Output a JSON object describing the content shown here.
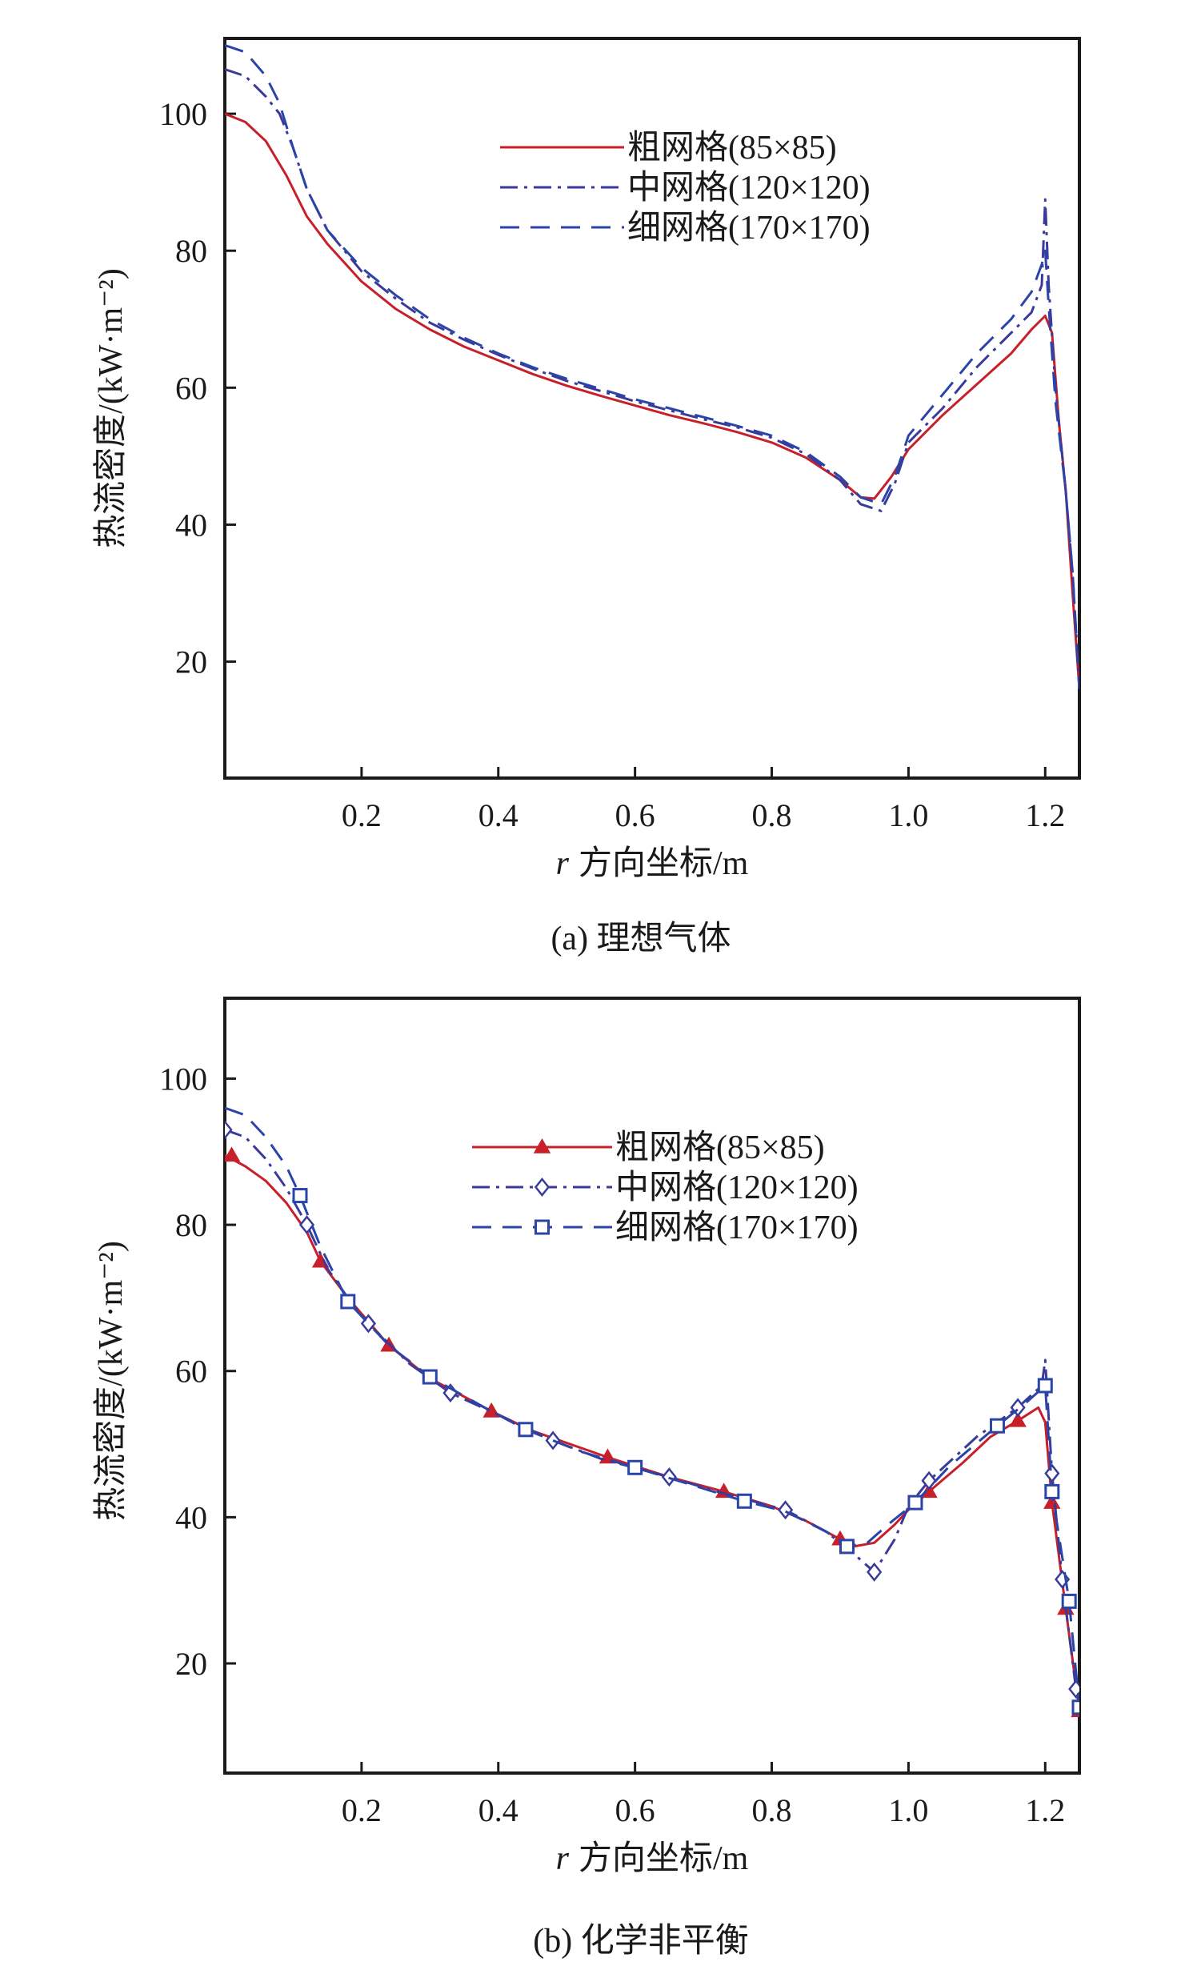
{
  "chart_data": [
    {
      "type": "line",
      "caption": "(a) 理想气体",
      "xlabel_var": "r",
      "xlabel": "方向坐标/m",
      "ylabel": "热流密度/(kW·m⁻²)",
      "xlim": [
        0.0,
        1.25
      ],
      "ylim": [
        3,
        111
      ],
      "xticks": [
        0.2,
        0.4,
        0.6,
        0.8,
        1.0,
        1.2
      ],
      "yticks": [
        20,
        40,
        60,
        80,
        100
      ],
      "legend_position": "top-right",
      "series": [
        {
          "name": "粗网格(85×85)",
          "color": "#c8202a",
          "dash": "solid",
          "marker": "none",
          "points": [
            [
              0.0,
              100
            ],
            [
              0.03,
              98.8
            ],
            [
              0.06,
              96
            ],
            [
              0.09,
              91
            ],
            [
              0.12,
              85
            ],
            [
              0.15,
              81
            ],
            [
              0.2,
              75.5
            ],
            [
              0.25,
              71.5
            ],
            [
              0.3,
              68.5
            ],
            [
              0.35,
              66
            ],
            [
              0.4,
              64
            ],
            [
              0.45,
              62
            ],
            [
              0.5,
              60.3
            ],
            [
              0.55,
              58.8
            ],
            [
              0.6,
              57.4
            ],
            [
              0.65,
              56
            ],
            [
              0.7,
              54.8
            ],
            [
              0.75,
              53.5
            ],
            [
              0.8,
              52
            ],
            [
              0.85,
              49.8
            ],
            [
              0.9,
              46.5
            ],
            [
              0.93,
              44
            ],
            [
              0.95,
              43.8
            ],
            [
              0.975,
              47
            ],
            [
              1.0,
              51
            ],
            [
              1.05,
              56
            ],
            [
              1.1,
              60.5
            ],
            [
              1.15,
              65
            ],
            [
              1.18,
              68.5
            ],
            [
              1.2,
              70.5
            ],
            [
              1.21,
              68
            ],
            [
              1.22,
              55
            ],
            [
              1.23,
              45
            ],
            [
              1.24,
              30
            ],
            [
              1.25,
              16
            ]
          ]
        },
        {
          "name": "中网格(120×120)",
          "color": "#3a3a9a",
          "dash": "dashdot",
          "marker": "none",
          "points": [
            [
              0.0,
              106.5
            ],
            [
              0.03,
              105.5
            ],
            [
              0.06,
              102.5
            ],
            [
              0.08,
              100
            ],
            [
              0.1,
              95
            ],
            [
              0.12,
              89
            ],
            [
              0.15,
              83
            ],
            [
              0.2,
              77
            ],
            [
              0.25,
              73
            ],
            [
              0.3,
              69.5
            ],
            [
              0.35,
              67
            ],
            [
              0.4,
              64.8
            ],
            [
              0.45,
              62.8
            ],
            [
              0.5,
              61
            ],
            [
              0.55,
              59.5
            ],
            [
              0.6,
              58
            ],
            [
              0.65,
              56.7
            ],
            [
              0.7,
              55.4
            ],
            [
              0.75,
              54.2
            ],
            [
              0.8,
              52.7
            ],
            [
              0.85,
              50.3
            ],
            [
              0.9,
              46.5
            ],
            [
              0.93,
              43
            ],
            [
              0.96,
              42
            ],
            [
              0.98,
              46
            ],
            [
              1.0,
              52
            ],
            [
              1.05,
              57
            ],
            [
              1.1,
              63
            ],
            [
              1.15,
              68
            ],
            [
              1.18,
              71
            ],
            [
              1.195,
              75
            ],
            [
              1.2,
              87.5
            ],
            [
              1.205,
              75
            ],
            [
              1.215,
              60
            ],
            [
              1.23,
              45
            ],
            [
              1.24,
              33
            ],
            [
              1.25,
              16
            ]
          ]
        },
        {
          "name": "细网格(170×170)",
          "color": "#2a44a8",
          "dash": "dashed",
          "marker": "none",
          "points": [
            [
              0.0,
              110
            ],
            [
              0.03,
              109
            ],
            [
              0.06,
              105.5
            ],
            [
              0.08,
              101.5
            ],
            [
              0.1,
              95
            ],
            [
              0.12,
              89
            ],
            [
              0.15,
              83
            ],
            [
              0.2,
              77.5
            ],
            [
              0.25,
              73.5
            ],
            [
              0.3,
              70
            ],
            [
              0.35,
              67.3
            ],
            [
              0.4,
              65
            ],
            [
              0.45,
              63
            ],
            [
              0.5,
              61.3
            ],
            [
              0.55,
              59.8
            ],
            [
              0.6,
              58.3
            ],
            [
              0.65,
              57
            ],
            [
              0.7,
              55.7
            ],
            [
              0.75,
              54.4
            ],
            [
              0.8,
              53
            ],
            [
              0.85,
              50.6
            ],
            [
              0.9,
              47
            ],
            [
              0.93,
              44
            ],
            [
              0.96,
              43
            ],
            [
              0.98,
              47
            ],
            [
              1.0,
              53
            ],
            [
              1.05,
              59
            ],
            [
              1.1,
              65
            ],
            [
              1.15,
              70
            ],
            [
              1.18,
              74
            ],
            [
              1.195,
              78
            ],
            [
              1.2,
              80
            ],
            [
              1.205,
              72
            ],
            [
              1.215,
              58
            ],
            [
              1.23,
              45
            ],
            [
              1.24,
              33
            ],
            [
              1.25,
              16
            ]
          ]
        }
      ]
    },
    {
      "type": "line",
      "caption": "(b) 化学非平衡",
      "xlabel_var": "r",
      "xlabel": "方向坐标/m",
      "ylabel": "热流密度/(kW·m⁻²)",
      "xlim": [
        0.0,
        1.25
      ],
      "ylim": [
        5,
        111
      ],
      "xticks": [
        0.2,
        0.4,
        0.6,
        0.8,
        1.0,
        1.2
      ],
      "yticks": [
        20,
        40,
        60,
        80,
        100
      ],
      "legend_position": "top-right",
      "series": [
        {
          "name": "粗网格(85×85)",
          "color": "#c8202a",
          "dash": "solid",
          "marker": "triangle",
          "points": [
            [
              0.0,
              89.5
            ],
            [
              0.03,
              88
            ],
            [
              0.06,
              86
            ],
            [
              0.09,
              83
            ],
            [
              0.12,
              79
            ],
            [
              0.14,
              75
            ],
            [
              0.18,
              70
            ],
            [
              0.24,
              63.5
            ],
            [
              0.3,
              59
            ],
            [
              0.39,
              54.5
            ],
            [
              0.45,
              51.8
            ],
            [
              0.56,
              48.2
            ],
            [
              0.65,
              45.5
            ],
            [
              0.73,
              43.5
            ],
            [
              0.8,
              41.5
            ],
            [
              0.85,
              39.5
            ],
            [
              0.9,
              37
            ],
            [
              0.92,
              36
            ],
            [
              0.95,
              36.5
            ],
            [
              0.98,
              39
            ],
            [
              1.0,
              41
            ],
            [
              1.03,
              43.5
            ],
            [
              1.08,
              47.5
            ],
            [
              1.12,
              51
            ],
            [
              1.16,
              53.2
            ],
            [
              1.19,
              55
            ],
            [
              1.2,
              53
            ],
            [
              1.21,
              42
            ],
            [
              1.23,
              27.5
            ],
            [
              1.25,
              13.5
            ]
          ],
          "marker_points": [
            [
              0.01,
              89.5
            ],
            [
              0.14,
              75
            ],
            [
              0.24,
              63.5
            ],
            [
              0.39,
              54.5
            ],
            [
              0.56,
              48.2
            ],
            [
              0.73,
              43.5
            ],
            [
              0.9,
              37
            ],
            [
              1.03,
              43.5
            ],
            [
              1.16,
              53.2
            ],
            [
              1.21,
              42
            ],
            [
              1.23,
              27.5
            ],
            [
              1.25,
              13.5
            ]
          ]
        },
        {
          "name": "中网格(120×120)",
          "color": "#3a3a9a",
          "dash": "dashdot",
          "marker": "diamond",
          "points": [
            [
              0.0,
              93
            ],
            [
              0.03,
              92
            ],
            [
              0.06,
              89
            ],
            [
              0.09,
              85
            ],
            [
              0.12,
              80
            ],
            [
              0.15,
              74
            ],
            [
              0.18,
              70
            ],
            [
              0.21,
              66.5
            ],
            [
              0.27,
              61
            ],
            [
              0.33,
              57
            ],
            [
              0.4,
              54
            ],
            [
              0.48,
              50.5
            ],
            [
              0.55,
              48
            ],
            [
              0.65,
              45.5
            ],
            [
              0.72,
              43.5
            ],
            [
              0.82,
              41
            ],
            [
              0.88,
              38
            ],
            [
              0.92,
              35
            ],
            [
              0.95,
              32.5
            ],
            [
              0.98,
              37
            ],
            [
              1.0,
              41.5
            ],
            [
              1.03,
              45
            ],
            [
              1.1,
              51
            ],
            [
              1.16,
              55
            ],
            [
              1.195,
              58
            ],
            [
              1.2,
              61.5
            ],
            [
              1.21,
              46
            ],
            [
              1.225,
              31.5
            ],
            [
              1.245,
              16.5
            ],
            [
              1.25,
              13.5
            ]
          ],
          "marker_points": [
            [
              0.0,
              93
            ],
            [
              0.12,
              80
            ],
            [
              0.21,
              66.5
            ],
            [
              0.33,
              57
            ],
            [
              0.48,
              50.5
            ],
            [
              0.65,
              45.5
            ],
            [
              0.82,
              41
            ],
            [
              0.95,
              32.5
            ],
            [
              1.03,
              45
            ],
            [
              1.16,
              55
            ],
            [
              1.21,
              46
            ],
            [
              1.225,
              31.5
            ],
            [
              1.245,
              16.5
            ]
          ]
        },
        {
          "name": "细网格(170×170)",
          "color": "#2a44a8",
          "dash": "dashed",
          "marker": "square",
          "points": [
            [
              0.0,
              96
            ],
            [
              0.03,
              95
            ],
            [
              0.06,
              92
            ],
            [
              0.09,
              88
            ],
            [
              0.11,
              84
            ],
            [
              0.14,
              77
            ],
            [
              0.18,
              69.5
            ],
            [
              0.24,
              63.5
            ],
            [
              0.3,
              59.2
            ],
            [
              0.38,
              55
            ],
            [
              0.44,
              52
            ],
            [
              0.52,
              49
            ],
            [
              0.6,
              46.8
            ],
            [
              0.68,
              44.5
            ],
            [
              0.76,
              42.2
            ],
            [
              0.82,
              40.8
            ],
            [
              0.88,
              38
            ],
            [
              0.91,
              36
            ],
            [
              0.94,
              36.5
            ],
            [
              0.97,
              39
            ],
            [
              1.01,
              42
            ],
            [
              1.06,
              47
            ],
            [
              1.13,
              52.5
            ],
            [
              1.17,
              55.5
            ],
            [
              1.2,
              58
            ],
            [
              1.21,
              43.5
            ],
            [
              1.235,
              28.5
            ],
            [
              1.25,
              14
            ]
          ],
          "marker_points": [
            [
              0.11,
              84
            ],
            [
              0.18,
              69.5
            ],
            [
              0.3,
              59.2
            ],
            [
              0.44,
              52
            ],
            [
              0.6,
              46.8
            ],
            [
              0.76,
              42.2
            ],
            [
              0.91,
              36
            ],
            [
              1.01,
              42
            ],
            [
              1.13,
              52.5
            ],
            [
              1.2,
              58
            ],
            [
              1.21,
              43.5
            ],
            [
              1.235,
              28.5
            ],
            [
              1.25,
              14
            ]
          ]
        }
      ]
    }
  ]
}
